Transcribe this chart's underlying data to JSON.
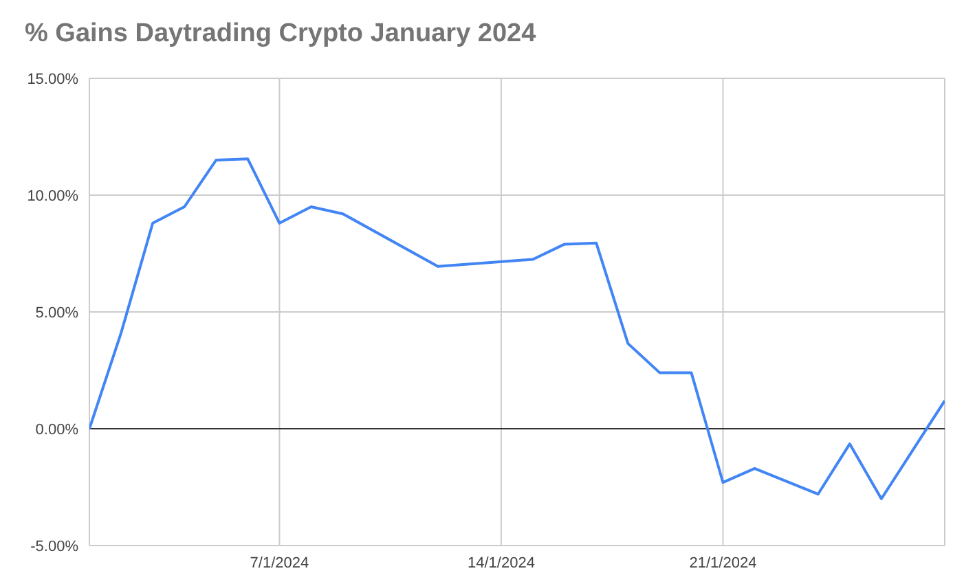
{
  "chart_data": {
    "type": "line",
    "title": "% Gains Daytrading Crypto January 2024",
    "x": [
      "2024-01-01",
      "2024-01-02",
      "2024-01-03",
      "2024-01-04",
      "2024-01-05",
      "2024-01-06",
      "2024-01-07",
      "2024-01-08",
      "2024-01-09",
      "2024-01-12",
      "2024-01-15",
      "2024-01-16",
      "2024-01-17",
      "2024-01-18",
      "2024-01-19",
      "2024-01-20",
      "2024-01-21",
      "2024-01-22",
      "2024-01-24",
      "2024-01-25",
      "2024-01-26",
      "2024-01-28"
    ],
    "series": [
      {
        "color": "#4285f4",
        "values": [
          0,
          4.1,
          8.8,
          9.5,
          11.5,
          11.55,
          8.8,
          9.5,
          9.2,
          6.95,
          7.25,
          7.9,
          7.95,
          3.65,
          2.4,
          2.4,
          -2.3,
          -1.7,
          -2.8,
          -0.65,
          -3.0,
          1.2
        ]
      }
    ],
    "xlim": [
      "2024-01-01",
      "2024-01-28"
    ],
    "xticks": [
      {
        "value": "2024-01-07",
        "label": "7/1/2024"
      },
      {
        "value": "2024-01-14",
        "label": "14/1/2024"
      },
      {
        "value": "2024-01-21",
        "label": "21/1/2024"
      }
    ],
    "ylim": [
      -5,
      15
    ],
    "yticks": [
      {
        "value": -5,
        "label": "-5.00%"
      },
      {
        "value": 0,
        "label": "0.00%"
      },
      {
        "value": 5,
        "label": "5.00%"
      },
      {
        "value": 10,
        "label": "10.00%"
      },
      {
        "value": 15,
        "label": "15.00%"
      }
    ],
    "ref_lines": [
      {
        "axis": "y",
        "value": 0,
        "color": "#333333"
      }
    ],
    "grid": true,
    "legend": false,
    "marker": "none",
    "line_style": "solid"
  }
}
